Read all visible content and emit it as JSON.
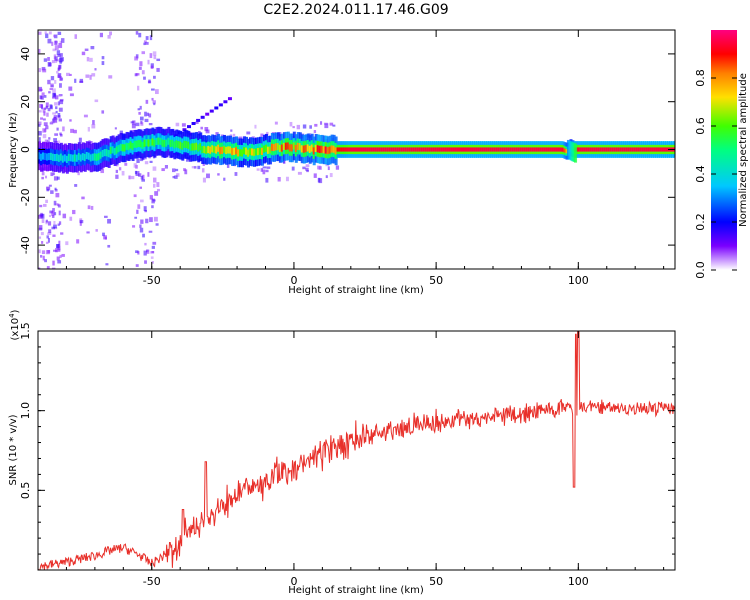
{
  "figure_title": "C2E2.2024.011.17.46.G09",
  "chart_data": [
    {
      "type": "heatmap",
      "xlabel": "Height of straight line (km)",
      "ylabel": "Frequency (Hz)",
      "xlim": [
        -90,
        134
      ],
      "ylim": [
        -50,
        50
      ],
      "x_ticks": [
        -50,
        0,
        50,
        100
      ],
      "y_ticks": [
        -40,
        -20,
        0,
        20,
        40
      ],
      "colorbar": {
        "label": "Normalized spectral amplitude",
        "range": [
          0.0,
          1.0
        ],
        "ticks": [
          "0.0",
          "0.2",
          "0.4",
          "0.6",
          "0.8"
        ],
        "colors": [
          "#ffffff",
          "#6a00ff",
          "#0000ff",
          "#00c8ff",
          "#00ff80",
          "#40ff00",
          "#ffe000",
          "#ff8000",
          "#ff0000",
          "#ff0080"
        ]
      },
      "ridge": {
        "description_free": true,
        "x": [
          -90,
          -85,
          -80,
          -75,
          -70,
          -65,
          -60,
          -55,
          -50,
          -45,
          -40,
          -35,
          -30,
          -25,
          -20,
          -15,
          -10,
          -5,
          0,
          5,
          10,
          15,
          20,
          50,
          94,
          96,
          97,
          98,
          100,
          134
        ],
        "y": [
          -3,
          -3,
          -4,
          -3,
          -3,
          -1,
          1,
          2,
          3,
          3,
          2,
          1,
          0,
          0,
          -1,
          -1,
          0,
          1,
          1,
          0,
          0,
          0,
          0,
          0,
          0,
          -1,
          1,
          0,
          0,
          0
        ],
        "amplitude": [
          0.35,
          0.4,
          0.45,
          0.5,
          0.5,
          0.55,
          0.55,
          0.6,
          0.6,
          0.6,
          0.6,
          0.65,
          0.75,
          0.8,
          0.8,
          0.75,
          0.8,
          0.85,
          0.85,
          0.85,
          0.9,
          0.9,
          0.95,
          0.95,
          0.95,
          0.7,
          0.6,
          0.9,
          0.95,
          0.95
        ]
      }
    },
    {
      "type": "line",
      "xlabel": "Height of straight line (km)",
      "ylabel": "SNR (10 * v/v)",
      "y_multiplier": "(x10",
      "y_multiplier_exp": "4",
      "y_multiplier_close": ")",
      "xlim": [
        -90,
        134
      ],
      "ylim": [
        0,
        1.5
      ],
      "x_ticks": [
        -50,
        0,
        50,
        100
      ],
      "y_ticks": [
        0.5,
        1.0,
        1.5
      ],
      "y_tick_labels": [
        "0.5",
        "1.0",
        "1.5"
      ],
      "color": "#e8302a",
      "series": [
        {
          "x": [
            -90,
            -80,
            -70,
            -65,
            -60,
            -55,
            -50,
            -45,
            -40,
            -35,
            -30,
            -25,
            -20,
            -15,
            -10,
            -5,
            0,
            5,
            10,
            15,
            20,
            25,
            30,
            35,
            40,
            45,
            50,
            55,
            60,
            65,
            70,
            75,
            80,
            85,
            90,
            95,
            98,
            100,
            102,
            105,
            110,
            115,
            120,
            125,
            130,
            134
          ],
          "y": [
            0.02,
            0.05,
            0.09,
            0.12,
            0.14,
            0.1,
            0.04,
            0.1,
            0.18,
            0.26,
            0.33,
            0.4,
            0.46,
            0.52,
            0.56,
            0.6,
            0.65,
            0.7,
            0.74,
            0.77,
            0.81,
            0.84,
            0.86,
            0.88,
            0.9,
            0.92,
            0.93,
            0.94,
            0.95,
            0.95,
            0.96,
            0.97,
            0.98,
            1.0,
            1.01,
            1.02,
            1.0,
            1.0,
            1.02,
            1.02,
            1.01,
            1.02,
            1.01,
            1.02,
            1.02,
            1.02
          ]
        }
      ],
      "spikes": [
        {
          "x": -31,
          "y": 0.68
        },
        {
          "x": -39,
          "y": 0.38
        },
        {
          "x": 99,
          "y": 1.48
        },
        {
          "x": 100,
          "y": 1.5
        },
        {
          "x": 98.5,
          "y": 0.52
        }
      ]
    }
  ]
}
